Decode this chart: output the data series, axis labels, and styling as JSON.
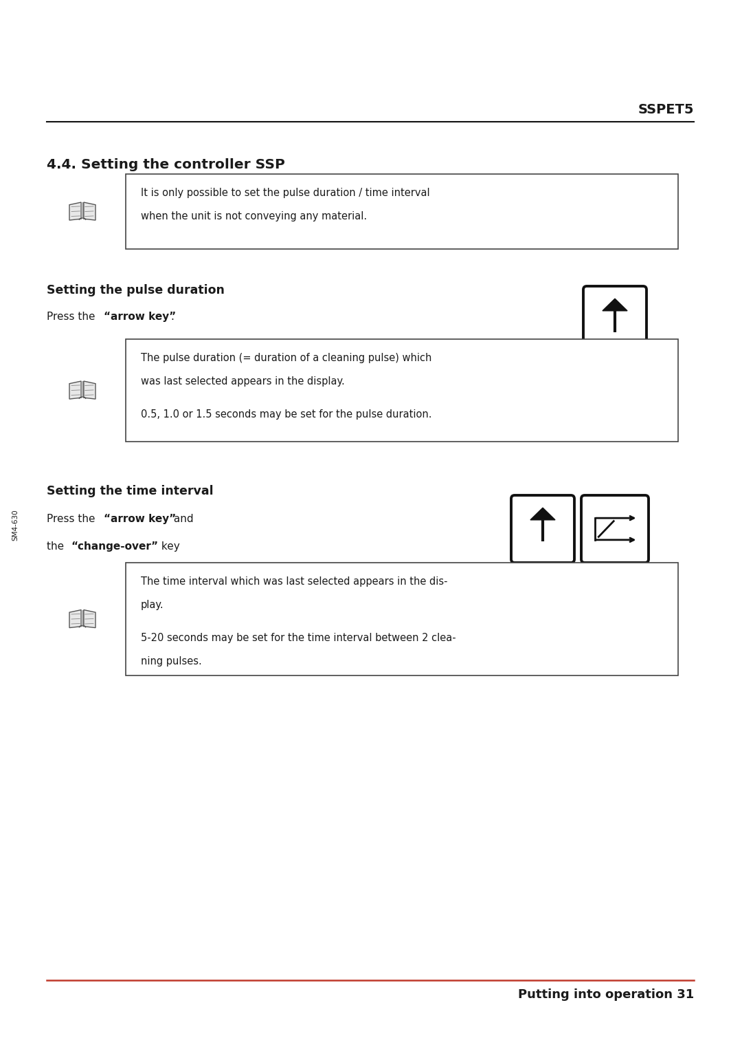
{
  "bg_color": "#ffffff",
  "font_color": "#1a1a1a",
  "header_line_color": "#111111",
  "header_text": "SSPET5",
  "section_title": "4.4. Setting the controller SSP",
  "note_box1_text_line1": "It is only possible to set the pulse duration / time interval",
  "note_box1_text_line2": "when the unit is not conveying any material.",
  "pulse_duration_title": "Setting the pulse duration",
  "pulse_press_normal1": "Press the ",
  "pulse_press_bold": "“arrow key”",
  "pulse_press_normal2": ".",
  "note_box2_text_line1": "The pulse duration (= duration of a cleaning pulse) which",
  "note_box2_text_line2": "was last selected appears in the display.",
  "note_box2_text_line3": "",
  "note_box2_text_line4": "0.5, 1.0 or 1.5 seconds may be set for the pulse duration.",
  "time_interval_title": "Setting the time interval",
  "time_press_normal1": "Press the ",
  "time_press_bold1": "“arrow key”",
  "time_press_normal2": " and",
  "time_the_normal1": "the ",
  "time_the_bold": "“change-over”",
  "time_the_normal2": " key",
  "note_box3_text_line1": "The time interval which was last selected appears in the dis-",
  "note_box3_text_line2": "play.",
  "note_box3_text_line3": "",
  "note_box3_text_line4": "5-20 seconds may be set for the time interval between 2 clea-",
  "note_box3_text_line5": "ning pulses.",
  "footer_line_color": "#c0392b",
  "footer_text": "Putting into operation 31",
  "sidebar_text": "SM4-630"
}
